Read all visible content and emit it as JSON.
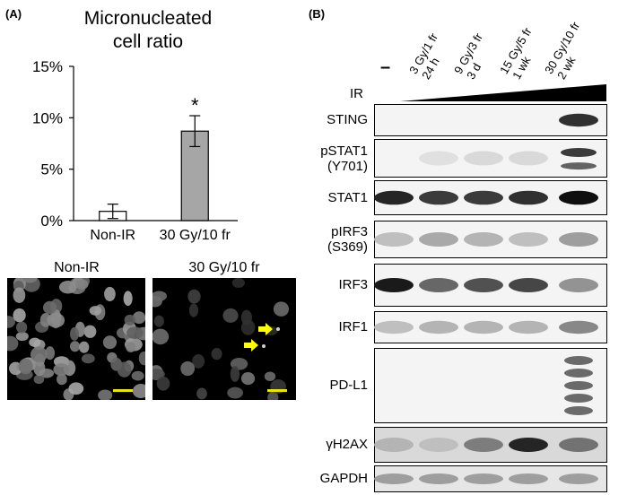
{
  "panel_a": {
    "letter": "(A)",
    "chart_data": {
      "type": "bar",
      "title": "Micronucleated cell ratio",
      "title_lines": [
        "Micronucleated",
        "cell ratio"
      ],
      "categories": [
        "Non-IR",
        "30 Gy/10 fr"
      ],
      "values": [
        0.9,
        8.7
      ],
      "errors": [
        0.7,
        1.5
      ],
      "bar_colors": [
        "#ffffff",
        "#a6a6a6"
      ],
      "significance": [
        "",
        "*"
      ],
      "ylim": [
        0,
        15
      ],
      "yticks": [
        0,
        5,
        10,
        15
      ],
      "ytick_labels": [
        "0%",
        "5%",
        "10%",
        "15%"
      ],
      "grid": false
    },
    "micrographs": [
      {
        "title": "Non-IR",
        "scale_bar_color": "#e6e600"
      },
      {
        "title": "30 Gy/10 fr",
        "scale_bar_color": "#e6e600",
        "arrow_color": "#ffff00"
      }
    ]
  },
  "panel_b": {
    "letter": "(B)",
    "ir_label": "IR",
    "control_lane": "–",
    "lanes": [
      {
        "line1": "3 Gy/1 fr",
        "line2": "24 h"
      },
      {
        "line1": "9 Gy/3 fr",
        "line2": "3 d"
      },
      {
        "line1": "15 Gy/5 fr",
        "line2": "1 wk"
      },
      {
        "line1": "30 Gy/10 fr",
        "line2": "2 wk"
      }
    ],
    "blots": [
      {
        "label1": "STING",
        "label2": "",
        "intensity": [
          0.0,
          0.0,
          0.0,
          0.0,
          0.85
        ]
      },
      {
        "label1": "pSTAT1",
        "label2": "(Y701)",
        "intensity": [
          0.0,
          0.05,
          0.08,
          0.08,
          0.8
        ]
      },
      {
        "label1": "STAT1",
        "label2": "",
        "intensity": [
          0.9,
          0.8,
          0.8,
          0.85,
          1.0
        ]
      },
      {
        "label1": "pIRF3",
        "label2": "(S369)",
        "intensity": [
          0.2,
          0.3,
          0.25,
          0.2,
          0.35
        ]
      },
      {
        "label1": "IRF3",
        "label2": "",
        "intensity": [
          0.95,
          0.6,
          0.7,
          0.75,
          0.4
        ]
      },
      {
        "label1": "IRF1",
        "label2": "",
        "intensity": [
          0.2,
          0.25,
          0.25,
          0.25,
          0.45
        ]
      },
      {
        "label1": "PD-L1",
        "label2": "",
        "intensity": [
          0.0,
          0.0,
          0.0,
          0.0,
          0.7
        ]
      },
      {
        "label1": "γH2AX",
        "label2": "",
        "intensity": [
          0.25,
          0.2,
          0.5,
          0.9,
          0.55
        ]
      },
      {
        "label1": "GAPDH",
        "label2": "",
        "intensity": [
          0.35,
          0.35,
          0.35,
          0.35,
          0.35
        ]
      }
    ]
  }
}
